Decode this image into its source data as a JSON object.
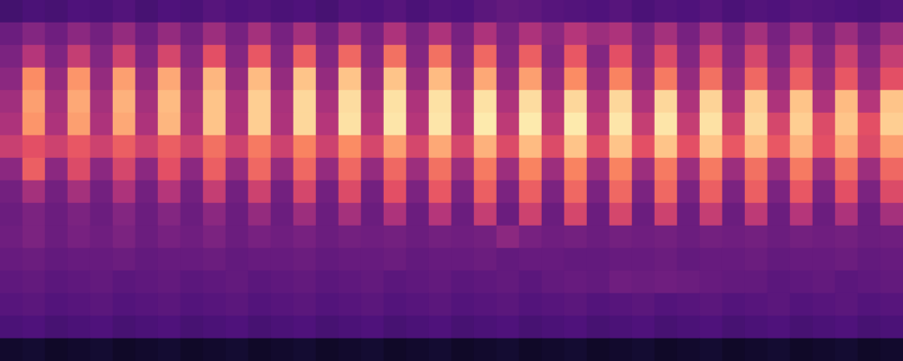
{
  "chart_data": {
    "type": "heatmap",
    "tick_labels": false,
    "color_range": [
      0,
      100
    ],
    "cells": [
      [
        22,
        24,
        23,
        25,
        24,
        26,
        23,
        25,
        24,
        27,
        25,
        26,
        24,
        25,
        23,
        26,
        25,
        27,
        24,
        26,
        25,
        28,
        30,
        29,
        27,
        26,
        25,
        27,
        24,
        26,
        25,
        27,
        24,
        26,
        25,
        27,
        26,
        25,
        24,
        26
      ],
      [
        32,
        38,
        33,
        40,
        34,
        42,
        33,
        42,
        34,
        44,
        35,
        46,
        35,
        46,
        34,
        46,
        35,
        48,
        36,
        48,
        35,
        48,
        36,
        48,
        40,
        50,
        44,
        48,
        36,
        46,
        35,
        46,
        35,
        46,
        35,
        45,
        34,
        44,
        34,
        44
      ],
      [
        36,
        50,
        37,
        54,
        38,
        56,
        37,
        58,
        38,
        62,
        38,
        64,
        38,
        66,
        38,
        68,
        38,
        70,
        38,
        70,
        38,
        68,
        38,
        66,
        38,
        64,
        38,
        62,
        38,
        60,
        38,
        60,
        38,
        58,
        38,
        58,
        38,
        56,
        38,
        54
      ],
      [
        40,
        76,
        42,
        78,
        42,
        80,
        42,
        82,
        42,
        85,
        42,
        86,
        42,
        88,
        42,
        88,
        42,
        88,
        42,
        86,
        42,
        82,
        42,
        80,
        42,
        76,
        42,
        74,
        42,
        72,
        42,
        70,
        42,
        68,
        42,
        66,
        42,
        64,
        42,
        62
      ],
      [
        45,
        80,
        46,
        82,
        46,
        84,
        46,
        86,
        46,
        88,
        47,
        90,
        47,
        92,
        47,
        93,
        47,
        94,
        48,
        94,
        48,
        94,
        48,
        93,
        48,
        92,
        48,
        92,
        48,
        92,
        48,
        91,
        48,
        90,
        48,
        88,
        48,
        86,
        50,
        88
      ],
      [
        48,
        78,
        48,
        80,
        48,
        82,
        48,
        85,
        48,
        88,
        48,
        90,
        48,
        92,
        50,
        94,
        50,
        95,
        50,
        95,
        50,
        96,
        52,
        96,
        52,
        96,
        52,
        95,
        54,
        95,
        54,
        94,
        56,
        92,
        58,
        90,
        60,
        88,
        62,
        90
      ],
      [
        55,
        62,
        56,
        64,
        56,
        66,
        56,
        66,
        56,
        70,
        56,
        72,
        56,
        74,
        56,
        76,
        58,
        80,
        58,
        82,
        58,
        84,
        60,
        86,
        60,
        88,
        60,
        88,
        62,
        88,
        62,
        88,
        64,
        86,
        64,
        84,
        62,
        82,
        60,
        80
      ],
      [
        40,
        66,
        40,
        60,
        40,
        58,
        40,
        62,
        40,
        66,
        42,
        68,
        42,
        68,
        42,
        68,
        42,
        68,
        44,
        70,
        44,
        72,
        44,
        74,
        44,
        74,
        44,
        74,
        44,
        72,
        44,
        72,
        44,
        70,
        44,
        72,
        44,
        70,
        44,
        68
      ],
      [
        34,
        46,
        34,
        46,
        34,
        48,
        34,
        50,
        34,
        54,
        34,
        56,
        34,
        58,
        34,
        60,
        34,
        62,
        36,
        64,
        36,
        66,
        36,
        66,
        36,
        68,
        36,
        68,
        36,
        68,
        36,
        66,
        36,
        66,
        36,
        64,
        36,
        62,
        36,
        60
      ],
      [
        32,
        36,
        32,
        36,
        32,
        38,
        32,
        38,
        32,
        40,
        32,
        42,
        32,
        44,
        32,
        46,
        32,
        48,
        32,
        50,
        32,
        54,
        32,
        56,
        32,
        58,
        32,
        58,
        32,
        56,
        32,
        54,
        32,
        52,
        32,
        50,
        32,
        48,
        32,
        46
      ],
      [
        33,
        36,
        32,
        35,
        33,
        36,
        32,
        35,
        33,
        36,
        32,
        35,
        33,
        35,
        32,
        34,
        33,
        34,
        32,
        34,
        33,
        34,
        40,
        35,
        33,
        34,
        32,
        34,
        33,
        34,
        32,
        34,
        33,
        34,
        32,
        34,
        33,
        34,
        32,
        33
      ],
      [
        31,
        32,
        30,
        31,
        31,
        32,
        30,
        31,
        31,
        32,
        30,
        31,
        31,
        32,
        30,
        31,
        31,
        32,
        30,
        31,
        31,
        32,
        30,
        31,
        31,
        30,
        30,
        31,
        31,
        32,
        30,
        31,
        31,
        32,
        30,
        31,
        31,
        32,
        30,
        31
      ],
      [
        29,
        30,
        28,
        29,
        30,
        28,
        29,
        30,
        28,
        29,
        30,
        28,
        29,
        30,
        28,
        29,
        30,
        28,
        29,
        30,
        28,
        29,
        30,
        28,
        30,
        31,
        30,
        33,
        32,
        33,
        32,
        31,
        30,
        30,
        28,
        29,
        30,
        28,
        29,
        30
      ],
      [
        27,
        28,
        26,
        27,
        28,
        26,
        27,
        28,
        26,
        27,
        28,
        26,
        27,
        28,
        26,
        27,
        28,
        26,
        27,
        28,
        26,
        27,
        28,
        26,
        27,
        28,
        26,
        27,
        28,
        26,
        27,
        28,
        26,
        27,
        28,
        26,
        27,
        28,
        26,
        27
      ],
      [
        24,
        25,
        23,
        24,
        25,
        23,
        24,
        25,
        23,
        24,
        25,
        23,
        24,
        25,
        23,
        24,
        25,
        23,
        24,
        25,
        23,
        24,
        25,
        23,
        24,
        25,
        23,
        24,
        25,
        23,
        24,
        25,
        23,
        24,
        25,
        23,
        24,
        25,
        23,
        24
      ],
      [
        8,
        9,
        7,
        8,
        9,
        7,
        8,
        9,
        7,
        8,
        9,
        7,
        8,
        9,
        7,
        8,
        9,
        7,
        8,
        9,
        7,
        8,
        9,
        7,
        8,
        9,
        7,
        8,
        9,
        7,
        8,
        9,
        7,
        8,
        9,
        7,
        8,
        9,
        7,
        8
      ]
    ]
  }
}
